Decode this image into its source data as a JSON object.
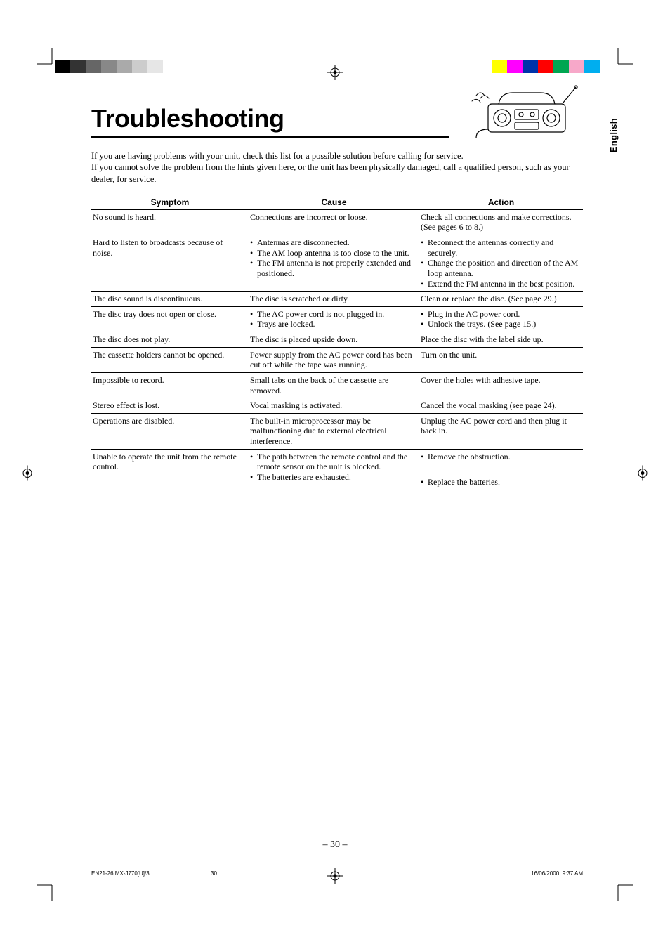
{
  "lang_tab": "English",
  "title": "Troubleshooting",
  "intro_lines": [
    "If you are having problems with your unit, check this list for a possible solution before calling for service.",
    "If you cannot solve the problem from the hints given here, or the unit has been physically damaged, call a qualified person, such as your dealer, for service."
  ],
  "headers": {
    "symptom": "Symptom",
    "cause": "Cause",
    "action": "Action"
  },
  "rows": [
    {
      "symptom": "No sound is heard.",
      "cause": "Connections are incorrect or loose.",
      "action": "Check all connections and make corrections. (See pages 6 to 8.)"
    },
    {
      "symptom": "Hard to listen to broadcasts because of noise.",
      "cause_list": [
        "Antennas are disconnected.",
        "The AM loop antenna is too close to the unit.",
        "The FM antenna is not properly extended and positioned."
      ],
      "action_list": [
        "Reconnect the antennas correctly and securely.",
        "Change the position and direction of the AM loop antenna.",
        "Extend the FM antenna in the best position."
      ]
    },
    {
      "symptom": "The disc sound is discontinuous.",
      "cause": "The disc is scratched or dirty.",
      "action": "Clean or replace the disc. (See page 29.)"
    },
    {
      "symptom": "The disc tray does not open or close.",
      "cause_list": [
        "The AC power cord is not plugged in.",
        "Trays are locked."
      ],
      "action_list": [
        "Plug in the AC power cord.",
        "Unlock the trays. (See page 15.)"
      ]
    },
    {
      "symptom": "The disc does not play.",
      "cause": "The disc is placed upside down.",
      "action": "Place the disc with the label side up."
    },
    {
      "symptom": "The cassette holders cannot be opened.",
      "cause": "Power supply from the AC power cord has been cut off while the tape was running.",
      "action": "Turn on the unit."
    },
    {
      "symptom": "Impossible to record.",
      "cause": "Small tabs on the back of the cassette are removed.",
      "action": "Cover the holes with adhesive tape."
    },
    {
      "symptom": "Stereo effect is lost.",
      "cause": "Vocal masking is activated.",
      "action": "Cancel the vocal masking (see page 24)."
    },
    {
      "symptom": "Operations are disabled.",
      "cause": "The built-in microprocessor may be malfunctioning due to external electrical interference.",
      "action": "Unplug the AC power cord and then plug it back in."
    },
    {
      "symptom": "Unable to operate the unit from the remote control.",
      "cause_list": [
        "The path between the remote control and the remote sensor on the unit is blocked.",
        "The batteries are exhausted."
      ],
      "action_list": [
        "Remove the obstruction.",
        "Replace the batteries."
      ],
      "action_spaced": true
    }
  ],
  "page_number": "– 30 –",
  "footer": {
    "left": "EN21-26.MX-J770[U]/3",
    "mid": "30",
    "right": "16/06/2000, 9:37 AM"
  },
  "colorbar_left": [
    "#000000",
    "#333333",
    "#666666",
    "#888888",
    "#aaaaaa",
    "#cccccc",
    "#e6e6e6",
    "#ffffff"
  ],
  "colorbar_right": [
    "#ffff00",
    "#ff00ff",
    "#0033aa",
    "#ff0000",
    "#00a651",
    "#f7a8c9",
    "#00aeef",
    "#ffffff"
  ]
}
